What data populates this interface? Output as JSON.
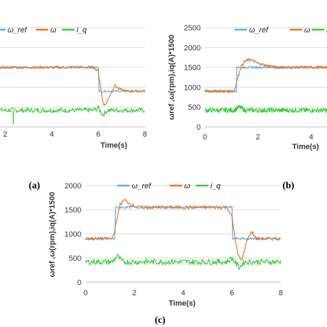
{
  "colors": {
    "w_ref": "#5aaee8",
    "w": "#e8742a",
    "i_q": "#33cc33"
  },
  "panels": [
    {
      "label": "(a)"
    },
    {
      "label": "(b)"
    },
    {
      "label": "(c)"
    }
  ],
  "chart_data": [
    {
      "type": "line",
      "panel": "(a)",
      "xlabel": "Time(s)",
      "ylabel": "",
      "xlim": [
        0,
        8
      ],
      "ylim": [
        0,
        2500
      ],
      "x_ticks_visible": [
        "2",
        "4",
        "6",
        "8"
      ],
      "grid": "horizontal",
      "legend": [
        "ω_ref",
        "ω",
        "i_q"
      ],
      "legend_position": "top",
      "series": [
        {
          "name": "ω_ref",
          "x": [
            0,
            6.0,
            6.0,
            8
          ],
          "y": [
            1500,
            1500,
            900,
            900
          ]
        },
        {
          "name": "ω",
          "x": [
            0,
            5.8,
            6.0,
            6.1,
            6.2,
            6.3,
            6.5,
            6.7,
            6.9,
            7.2,
            8
          ],
          "y": [
            1500,
            1500,
            1400,
            1000,
            600,
            550,
            800,
            1050,
            950,
            900,
            900
          ]
        },
        {
          "name": "i_q",
          "x": [
            0,
            5.8,
            6.0,
            6.2,
            6.4,
            8
          ],
          "y": [
            420,
            420,
            480,
            300,
            420,
            420
          ]
        }
      ]
    },
    {
      "type": "line",
      "panel": "(b)",
      "xlabel": "Time(s)",
      "ylabel": "ωref ,ω(rpm),iq(A)*1500",
      "xlim": [
        0,
        4.6
      ],
      "ylim": [
        0,
        2500
      ],
      "x_ticks": [
        "0",
        "2",
        "4"
      ],
      "y_ticks": [
        "0",
        "500",
        "1000",
        "1500",
        "2000",
        "2500"
      ],
      "grid": "horizontal",
      "legend": [
        "ω_ref",
        "ω",
        "i_q"
      ],
      "legend_position": "top",
      "series": [
        {
          "name": "ω_ref",
          "x": [
            0,
            1.2,
            1.2,
            4.6
          ],
          "y": [
            900,
            900,
            1500,
            1500
          ]
        },
        {
          "name": "ω",
          "x": [
            0,
            1.1,
            1.2,
            1.35,
            1.5,
            1.7,
            2.0,
            2.3,
            2.7,
            3.2,
            4.6
          ],
          "y": [
            900,
            900,
            1150,
            1500,
            1650,
            1700,
            1600,
            1550,
            1500,
            1500,
            1500
          ]
        },
        {
          "name": "i_q",
          "x": [
            0,
            1.1,
            1.3,
            1.5,
            4.6
          ],
          "y": [
            420,
            420,
            500,
            420,
            420
          ]
        }
      ]
    },
    {
      "type": "line",
      "panel": "(c)",
      "xlabel": "Time(s)",
      "ylabel": "ωref ,ω(rpm),iq(A)*1500",
      "xlim": [
        0,
        8
      ],
      "ylim": [
        0,
        2000
      ],
      "x_ticks": [
        "0",
        "2",
        "4",
        "6",
        "8"
      ],
      "y_ticks": [
        "0",
        "500",
        "1000",
        "1500",
        "2000"
      ],
      "grid": "horizontal",
      "legend": [
        "ω_ref",
        "ω",
        "i_q"
      ],
      "legend_position": "top",
      "series": [
        {
          "name": "ω_ref",
          "x": [
            0,
            1.2,
            1.2,
            6.0,
            6.0,
            8
          ],
          "y": [
            900,
            900,
            1550,
            1550,
            900,
            900
          ]
        },
        {
          "name": "ω",
          "x": [
            0,
            1.1,
            1.25,
            1.4,
            1.6,
            1.9,
            2.2,
            2.6,
            5.8,
            6.0,
            6.1,
            6.25,
            6.4,
            6.6,
            6.8,
            7.0,
            7.3,
            8
          ],
          "y": [
            900,
            900,
            1200,
            1600,
            1700,
            1600,
            1550,
            1550,
            1550,
            1350,
            1000,
            550,
            450,
            850,
            1050,
            900,
            900,
            900
          ]
        },
        {
          "name": "i_q",
          "x": [
            0,
            1.1,
            1.3,
            1.5,
            5.8,
            6.0,
            6.3,
            6.5,
            8
          ],
          "y": [
            420,
            420,
            550,
            420,
            420,
            500,
            300,
            420,
            420
          ]
        }
      ]
    }
  ]
}
